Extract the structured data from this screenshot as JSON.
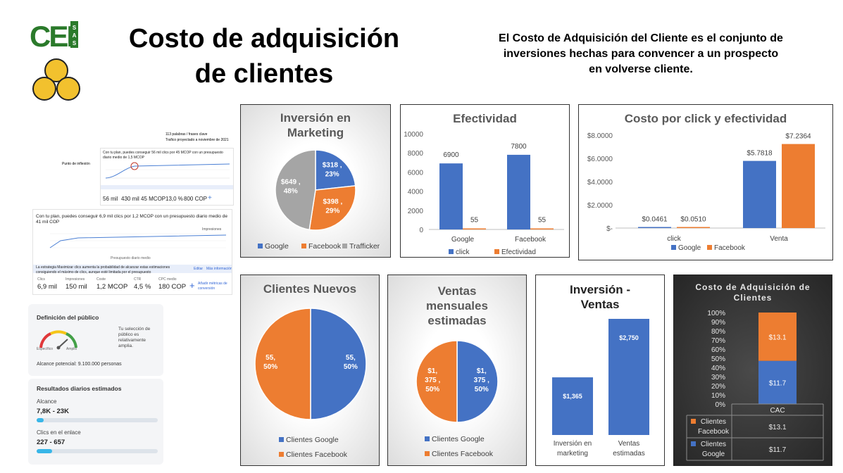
{
  "header": {
    "title_line1": "Costo de adquisición",
    "title_line2": "de clientes",
    "description_line1": "El Costo de Adquisición del Cliente es el conjunto de",
    "description_line2": "inversiones hechas para convencer a un prospecto",
    "description_line3": "en volverse cliente.",
    "logo_text": "CEI",
    "logo_sub": "SAS"
  },
  "shot1": {
    "keywords": "113 palabras / frases clave",
    "traffic": "Trafico proyectado a noviembre de 2021",
    "plan": "Con tu plan, puedes conseguir 56 mil clics por 45 MCOP con un presupuesto diario medio de 1,5 MCOP",
    "inflection": "Punto de inflexión",
    "metrics": [
      "56 mil",
      "430 mil",
      "45 MCOP",
      "13,0 %",
      "800 COP"
    ],
    "metric_labels": [
      "Clics",
      "Impresiones",
      "Coste",
      "CTR",
      "CPC medio"
    ]
  },
  "shot2": {
    "plan": "Con tu plan, puedes conseguir 6,9 mil clics por 1,2 MCOP con un presupuesto diario medio de 41 mil COP",
    "dropdown": "Impresiones",
    "xlabel": "Presupuesto diario medio",
    "note": "La estrategia Maximizar clics aumenta la probabilidad de alcanzar estas estimaciones consiguiendo el máximo de clics, aunque esté limitada por el presupuesto",
    "edit": "Editar",
    "more": "Más información",
    "metric_labels": [
      "Clics",
      "Impresiones",
      "Coste",
      "CTR",
      "CPC medio"
    ],
    "metrics": [
      "6,9 mil",
      "150 mil",
      "1,2 MCOP",
      "4,5 %",
      "180 COP"
    ],
    "add": "Añadir métricas de conversión"
  },
  "audience": {
    "title": "Definición del público",
    "desc": "Tu selección de público es relativamente amplia.",
    "specific": "Específico",
    "broad": "Amplio",
    "reach": "Alcance potencial: 9.100.000 personas"
  },
  "daily": {
    "title": "Resultados diarios estimados",
    "reach_label": "Alcance",
    "reach_value": "7,8K - 23K",
    "clicks_label": "Clics en el enlace",
    "clicks_value": "227 - 657"
  },
  "colors": {
    "blue": "#4472c4",
    "orange": "#ed7d31",
    "gray": "#a5a5a5",
    "blue_bar": "#4472c4",
    "orange_bar": "#ed7d31"
  },
  "chart_data": [
    {
      "type": "pie",
      "title": "Inversión en Marketing",
      "categories": [
        "Google",
        "Facebook",
        "Trafficker"
      ],
      "values": [
        318,
        398,
        649
      ],
      "labels": [
        "$318 , 23%",
        "$398 , 29%",
        "$649 , 48%"
      ],
      "legend": "bottom"
    },
    {
      "type": "bar",
      "title": "Efectividad",
      "categories": [
        "Google",
        "Facebook"
      ],
      "series": [
        {
          "name": "click",
          "values": [
            6900,
            7800
          ]
        },
        {
          "name": "Efectividad",
          "values": [
            55,
            55
          ]
        }
      ],
      "ylim": [
        0,
        10000
      ],
      "yticks": [
        "0",
        "2000",
        "4000",
        "6000",
        "8000",
        "10000"
      ],
      "legend": "bottom"
    },
    {
      "type": "bar",
      "title": "Costo por click y efectividad",
      "categories": [
        "click",
        "Venta"
      ],
      "series": [
        {
          "name": "Google",
          "values": [
            0.0461,
            5.7818
          ]
        },
        {
          "name": "Facebook",
          "values": [
            0.051,
            7.2364
          ]
        }
      ],
      "data_labels": [
        [
          "$0.0461",
          "$5.7818"
        ],
        [
          "$0.0510",
          "$7.2364"
        ]
      ],
      "ylim": [
        0,
        8
      ],
      "yticks": [
        "$-",
        "$2.0000",
        "$4.0000",
        "$6.0000",
        "$8.0000"
      ],
      "legend": "bottom"
    },
    {
      "type": "pie",
      "title": "Clientes Nuevos",
      "categories": [
        "Clientes Google",
        "Clientes Facebook"
      ],
      "values": [
        55,
        55
      ],
      "labels": [
        "55, 50%",
        "55, 50%"
      ],
      "legend": "bottom"
    },
    {
      "type": "pie",
      "title": "Ventas mensuales estimadas",
      "categories": [
        "Clientes Google",
        "Clientes Facebook"
      ],
      "values": [
        1375,
        1375
      ],
      "labels": [
        "$1,375 , 50%",
        "$1,375 , 50%"
      ],
      "legend": "bottom"
    },
    {
      "type": "bar",
      "title": "Inversión - Ventas",
      "categories": [
        "Inversión en marketing",
        "Ventas estimadas"
      ],
      "values": [
        1365,
        2750
      ],
      "data_labels": [
        "$1,365",
        "$2,750"
      ]
    },
    {
      "type": "bar",
      "title": "Costo de Adquisición de Clientes",
      "categories": [
        "CAC"
      ],
      "series": [
        {
          "name": "Clientes Google",
          "values": [
            11.7
          ]
        },
        {
          "name": "Clientes Facebook",
          "values": [
            13.1
          ]
        }
      ],
      "data_labels": [
        "$11.7",
        "$13.1"
      ],
      "yticks": [
        "0%",
        "10%",
        "20%",
        "30%",
        "40%",
        "50%",
        "60%",
        "70%",
        "80%",
        "90%",
        "100%"
      ],
      "ylim": [
        0,
        100
      ],
      "table": [
        [
          "Clientes Facebook",
          "$13.1"
        ],
        [
          "Clientes Google",
          "$11.7"
        ]
      ]
    }
  ]
}
